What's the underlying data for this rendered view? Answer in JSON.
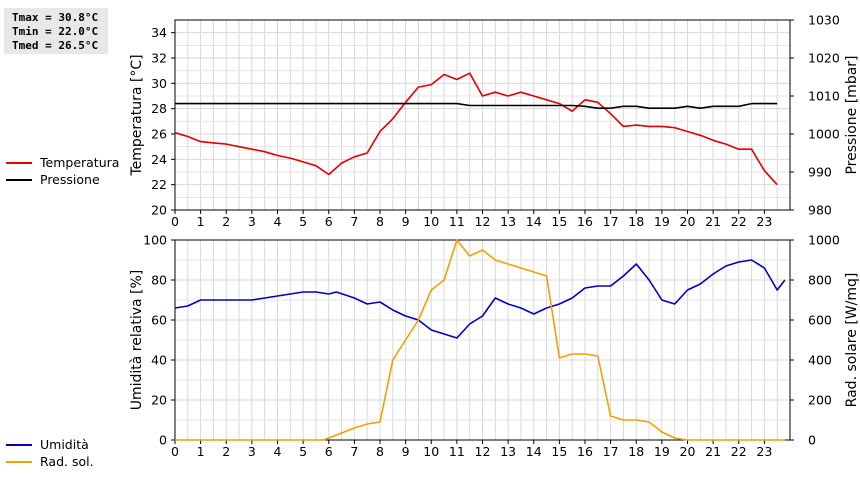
{
  "stats": {
    "tmax": "Tmax = 30.8°C",
    "tmin": "Tmin = 22.0°C",
    "tmed": "Tmed = 26.5°C"
  },
  "chart_data": [
    {
      "type": "line",
      "xlabel": "",
      "ylabel_left": "Temperatura [°C]",
      "ylabel_right": "Pressione [mbar]",
      "xlim": [
        0,
        24
      ],
      "xticks": [
        0,
        1,
        2,
        3,
        4,
        5,
        6,
        7,
        8,
        9,
        10,
        11,
        12,
        13,
        14,
        15,
        16,
        17,
        18,
        19,
        20,
        21,
        22,
        23
      ],
      "ylim_left": [
        20,
        35
      ],
      "yticks_left": [
        20,
        22,
        24,
        26,
        28,
        30,
        32,
        34
      ],
      "ylim_right": [
        980,
        1030
      ],
      "yticks_right": [
        980,
        990,
        1000,
        1010,
        1020,
        1030
      ],
      "grid": true,
      "legend": [
        {
          "label": "Temperatura",
          "color": "#e00000"
        },
        {
          "label": "Pressione",
          "color": "#000000"
        }
      ],
      "series": [
        {
          "name": "Temperatura",
          "axis": "left",
          "color": "#e00000",
          "points": [
            [
              0,
              26.1
            ],
            [
              0.5,
              25.8
            ],
            [
              1,
              25.4
            ],
            [
              1.5,
              25.3
            ],
            [
              2,
              25.2
            ],
            [
              2.5,
              25.0
            ],
            [
              3,
              24.8
            ],
            [
              3.5,
              24.6
            ],
            [
              4,
              24.3
            ],
            [
              4.5,
              24.1
            ],
            [
              5,
              23.8
            ],
            [
              5.5,
              23.5
            ],
            [
              6,
              22.8
            ],
            [
              6.5,
              23.7
            ],
            [
              7,
              24.2
            ],
            [
              7.5,
              24.5
            ],
            [
              8,
              26.2
            ],
            [
              8.5,
              27.2
            ],
            [
              9,
              28.5
            ],
            [
              9.5,
              29.7
            ],
            [
              10,
              29.9
            ],
            [
              10.5,
              30.7
            ],
            [
              11,
              30.3
            ],
            [
              11.5,
              30.8
            ],
            [
              12,
              29.0
            ],
            [
              12.5,
              29.3
            ],
            [
              13,
              29.0
            ],
            [
              13.5,
              29.3
            ],
            [
              14,
              29.0
            ],
            [
              14.5,
              28.7
            ],
            [
              15,
              28.4
            ],
            [
              15.5,
              27.8
            ],
            [
              16,
              28.7
            ],
            [
              16.5,
              28.5
            ],
            [
              17,
              27.6
            ],
            [
              17.5,
              26.6
            ],
            [
              18,
              26.7
            ],
            [
              18.5,
              26.6
            ],
            [
              19,
              26.6
            ],
            [
              19.5,
              26.5
            ],
            [
              20,
              26.2
            ],
            [
              20.5,
              25.9
            ],
            [
              21,
              25.5
            ],
            [
              21.5,
              25.2
            ],
            [
              22,
              24.8
            ],
            [
              22.5,
              24.8
            ],
            [
              23,
              23.1
            ],
            [
              23.5,
              22.0
            ]
          ]
        },
        {
          "name": "Pressione",
          "axis": "right",
          "color": "#000000",
          "points": [
            [
              0,
              1008
            ],
            [
              1,
              1008
            ],
            [
              2,
              1008
            ],
            [
              3,
              1008
            ],
            [
              4,
              1008
            ],
            [
              5,
              1008
            ],
            [
              6,
              1008
            ],
            [
              7,
              1008
            ],
            [
              8,
              1008
            ],
            [
              9,
              1008
            ],
            [
              10,
              1008
            ],
            [
              11,
              1008
            ],
            [
              11.5,
              1007.5
            ],
            [
              12,
              1007.5
            ],
            [
              13,
              1007.5
            ],
            [
              14,
              1007.5
            ],
            [
              15,
              1007.5
            ],
            [
              15.5,
              1007.5
            ],
            [
              16,
              1007.3
            ],
            [
              16.5,
              1006.8
            ],
            [
              17,
              1006.8
            ],
            [
              17.5,
              1007.3
            ],
            [
              18,
              1007.3
            ],
            [
              18.5,
              1006.8
            ],
            [
              19,
              1006.8
            ],
            [
              19.5,
              1006.8
            ],
            [
              20,
              1007.3
            ],
            [
              20.5,
              1006.8
            ],
            [
              21,
              1007.3
            ],
            [
              21.5,
              1007.3
            ],
            [
              22,
              1007.3
            ],
            [
              22.5,
              1008
            ],
            [
              23,
              1008
            ],
            [
              23.5,
              1008
            ]
          ]
        }
      ]
    },
    {
      "type": "line",
      "xlabel": "",
      "ylabel_left": "Umidità relativa [%]",
      "ylabel_right": "Rad. solare [W/mq]",
      "xlim": [
        0,
        24
      ],
      "xticks": [
        0,
        1,
        2,
        3,
        4,
        5,
        6,
        7,
        8,
        9,
        10,
        11,
        12,
        13,
        14,
        15,
        16,
        17,
        18,
        19,
        20,
        21,
        22,
        23
      ],
      "ylim_left": [
        0,
        100
      ],
      "yticks_left": [
        0,
        20,
        40,
        60,
        80,
        100
      ],
      "ylim_right": [
        0,
        1000
      ],
      "yticks_right": [
        0,
        200,
        400,
        600,
        800,
        1000
      ],
      "grid": true,
      "legend": [
        {
          "label": "Umidità",
          "color": "#0000c0"
        },
        {
          "label": "Rad. sol.",
          "color": "#f0a000"
        }
      ],
      "series": [
        {
          "name": "Umidità",
          "axis": "left",
          "color": "#0000c0",
          "points": [
            [
              0,
              66
            ],
            [
              0.5,
              67
            ],
            [
              1,
              70
            ],
            [
              1.5,
              70
            ],
            [
              2,
              70
            ],
            [
              2.5,
              70
            ],
            [
              3,
              70
            ],
            [
              3.5,
              71
            ],
            [
              4,
              72
            ],
            [
              4.5,
              73
            ],
            [
              5,
              74
            ],
            [
              5.5,
              74
            ],
            [
              6,
              73
            ],
            [
              6.3,
              74
            ],
            [
              7,
              71
            ],
            [
              7.5,
              68
            ],
            [
              8,
              69
            ],
            [
              8.5,
              65
            ],
            [
              9,
              62
            ],
            [
              9.5,
              60
            ],
            [
              10,
              55
            ],
            [
              10.5,
              53
            ],
            [
              11,
              51
            ],
            [
              11.5,
              58
            ],
            [
              12,
              62
            ],
            [
              12.5,
              71
            ],
            [
              13,
              68
            ],
            [
              13.5,
              66
            ],
            [
              14,
              63
            ],
            [
              14.5,
              66
            ],
            [
              15,
              68
            ],
            [
              15.5,
              71
            ],
            [
              16,
              76
            ],
            [
              16.5,
              77
            ],
            [
              17,
              77
            ],
            [
              17.5,
              82
            ],
            [
              18,
              88
            ],
            [
              18.5,
              80
            ],
            [
              19,
              70
            ],
            [
              19.5,
              68
            ],
            [
              20,
              75
            ],
            [
              20.5,
              78
            ],
            [
              21,
              83
            ],
            [
              21.5,
              87
            ],
            [
              22,
              89
            ],
            [
              22.5,
              90
            ],
            [
              23,
              86
            ],
            [
              23.5,
              75
            ],
            [
              23.8,
              80
            ]
          ]
        },
        {
          "name": "Rad. sol.",
          "axis": "right",
          "color": "#f0a000",
          "points": [
            [
              0,
              0
            ],
            [
              1,
              0
            ],
            [
              2,
              0
            ],
            [
              3,
              0
            ],
            [
              4,
              0
            ],
            [
              5,
              0
            ],
            [
              5.8,
              0
            ],
            [
              6.2,
              20
            ],
            [
              7,
              60
            ],
            [
              7.5,
              80
            ],
            [
              8,
              90
            ],
            [
              8.5,
              400
            ],
            [
              9,
              500
            ],
            [
              9.5,
              600
            ],
            [
              10,
              750
            ],
            [
              10.5,
              800
            ],
            [
              11,
              1000
            ],
            [
              11.5,
              920
            ],
            [
              12,
              950
            ],
            [
              12.5,
              900
            ],
            [
              13,
              880
            ],
            [
              13.5,
              860
            ],
            [
              14,
              840
            ],
            [
              14.5,
              820
            ],
            [
              15,
              410
            ],
            [
              15.5,
              430
            ],
            [
              16,
              430
            ],
            [
              16.5,
              420
            ],
            [
              17,
              120
            ],
            [
              17.5,
              100
            ],
            [
              18,
              100
            ],
            [
              18.5,
              90
            ],
            [
              19,
              40
            ],
            [
              19.5,
              10
            ],
            [
              20,
              0
            ],
            [
              21,
              0
            ],
            [
              22,
              0
            ],
            [
              23,
              0
            ],
            [
              23.8,
              0
            ]
          ]
        }
      ]
    }
  ]
}
